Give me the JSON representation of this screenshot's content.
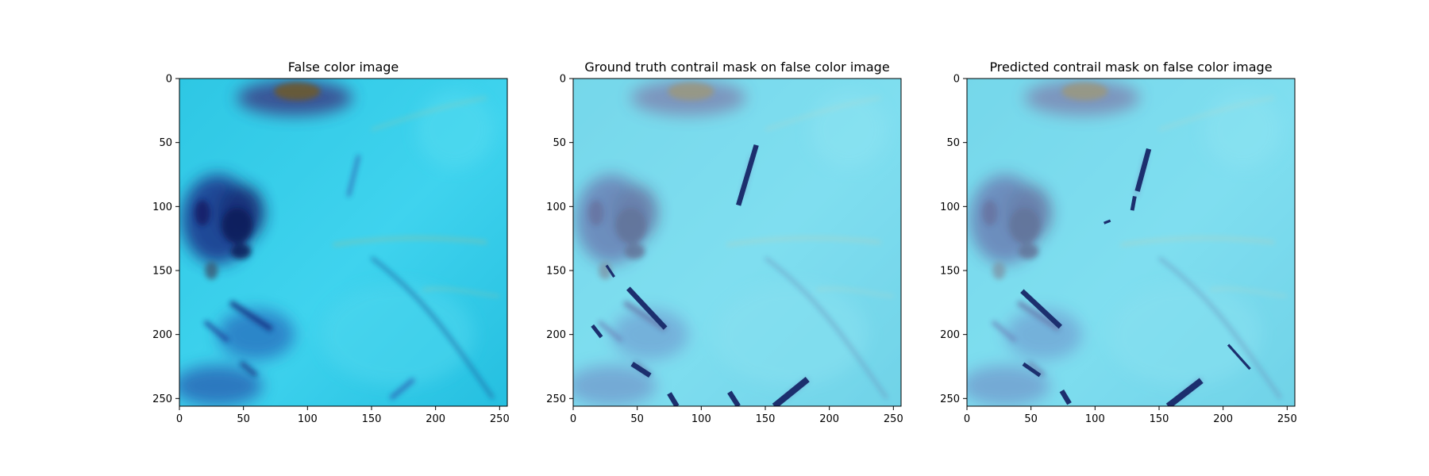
{
  "chart_data": [
    {
      "type": "image",
      "title": "False color image",
      "xlim": [
        0,
        256
      ],
      "ylim": [
        256,
        0
      ],
      "xticks": [
        0,
        50,
        100,
        150,
        200,
        250
      ],
      "yticks": [
        0,
        50,
        100,
        150,
        200,
        250
      ],
      "overlay": "none",
      "mask_segments": []
    },
    {
      "type": "image",
      "title": "Ground truth contrail mask on false color image",
      "xlim": [
        0,
        256
      ],
      "ylim": [
        256,
        0
      ],
      "xticks": [
        0,
        50,
        100,
        150,
        200,
        250
      ],
      "yticks": [
        0,
        50,
        100,
        150,
        200,
        250
      ],
      "overlay": "mask",
      "mask_segments": [
        {
          "x1": 143,
          "y1": 52,
          "x2": 129,
          "y2": 99,
          "w": 4
        },
        {
          "x1": 26,
          "y1": 146,
          "x2": 32,
          "y2": 155,
          "w": 2
        },
        {
          "x1": 43,
          "y1": 164,
          "x2": 72,
          "y2": 195,
          "w": 4
        },
        {
          "x1": 15,
          "y1": 193,
          "x2": 22,
          "y2": 202,
          "w": 3
        },
        {
          "x1": 46,
          "y1": 223,
          "x2": 60,
          "y2": 232,
          "w": 4
        },
        {
          "x1": 75,
          "y1": 246,
          "x2": 81,
          "y2": 256,
          "w": 4
        },
        {
          "x1": 122,
          "y1": 245,
          "x2": 129,
          "y2": 256,
          "w": 4
        },
        {
          "x1": 183,
          "y1": 235,
          "x2": 157,
          "y2": 256,
          "w": 5
        }
      ]
    },
    {
      "type": "image",
      "title": "Predicted contrail mask on false color image",
      "xlim": [
        0,
        256
      ],
      "ylim": [
        256,
        0
      ],
      "xticks": [
        0,
        50,
        100,
        150,
        200,
        250
      ],
      "yticks": [
        0,
        50,
        100,
        150,
        200,
        250
      ],
      "overlay": "mask",
      "mask_segments": [
        {
          "x1": 142,
          "y1": 55,
          "x2": 133,
          "y2": 88,
          "w": 4
        },
        {
          "x1": 131,
          "y1": 92,
          "x2": 129,
          "y2": 103,
          "w": 3
        },
        {
          "x1": 107,
          "y1": 113,
          "x2": 112,
          "y2": 111,
          "w": 2
        },
        {
          "x1": 43,
          "y1": 166,
          "x2": 73,
          "y2": 194,
          "w": 4
        },
        {
          "x1": 44,
          "y1": 223,
          "x2": 57,
          "y2": 232,
          "w": 3
        },
        {
          "x1": 74,
          "y1": 244,
          "x2": 80,
          "y2": 254,
          "w": 4
        },
        {
          "x1": 183,
          "y1": 236,
          "x2": 157,
          "y2": 256,
          "w": 5
        },
        {
          "x1": 204,
          "y1": 208,
          "x2": 221,
          "y2": 227,
          "w": 2
        }
      ]
    }
  ]
}
